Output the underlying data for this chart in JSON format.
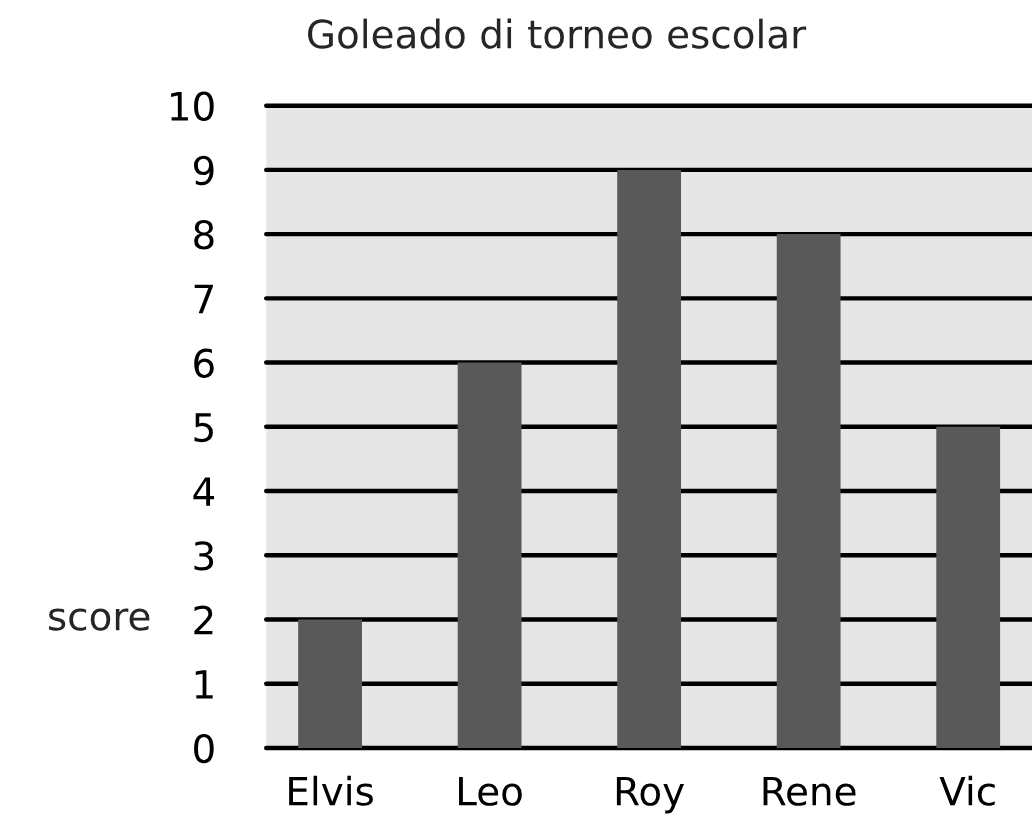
{
  "chart_data": {
    "type": "bar",
    "title": "Goleado di torneo escolar",
    "ylabel": "score",
    "categories": [
      "Elvis",
      "Leo",
      "Roy",
      "Rene",
      "Vic"
    ],
    "values": [
      2,
      6,
      9,
      8,
      5
    ],
    "color": "#595959",
    "ylim": [
      0,
      10
    ],
    "yticks": [
      0,
      1,
      2,
      3,
      4,
      5,
      6,
      7,
      8,
      9,
      10
    ],
    "grid": "y"
  }
}
